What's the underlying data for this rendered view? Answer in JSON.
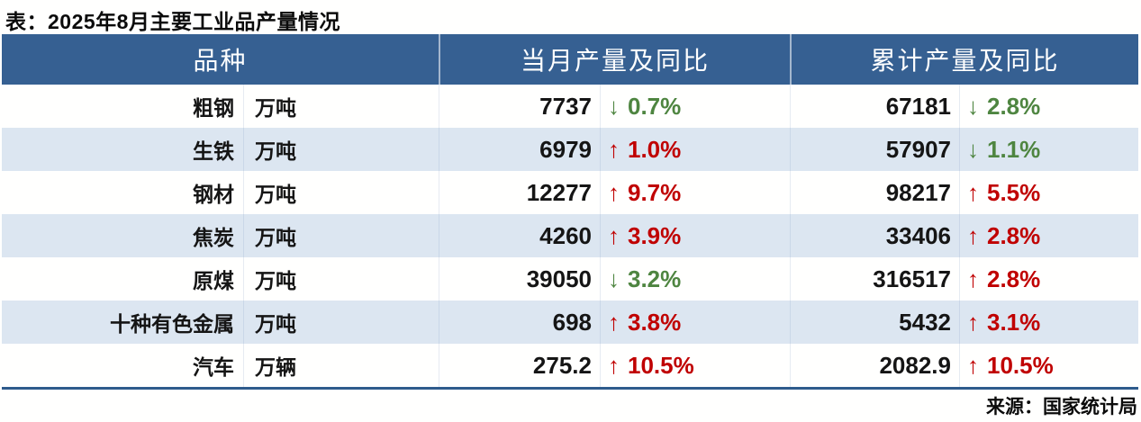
{
  "arrows": {
    "up": "↑",
    "down": "↓"
  },
  "colors": {
    "header_bg": "#366092",
    "alt_row": "#dce6f1",
    "up_red": "#c00000",
    "down_green": "#4e8540",
    "bottom_rule": "#2e5b8c"
  },
  "chart_data": {
    "type": "table",
    "title": "表：2025年8月主要工业品产量情况",
    "columns": [
      "品种",
      "当月产量及同比",
      "累计产量及同比"
    ],
    "rows": [
      {
        "name": "粗钢",
        "unit": "万吨",
        "month_value": "7737",
        "month_dir": "down",
        "month_pct": "0.7%",
        "cum_value": "67181",
        "cum_dir": "down",
        "cum_pct": "2.8%"
      },
      {
        "name": "生铁",
        "unit": "万吨",
        "month_value": "6979",
        "month_dir": "up",
        "month_pct": "1.0%",
        "cum_value": "57907",
        "cum_dir": "down",
        "cum_pct": "1.1%"
      },
      {
        "name": "钢材",
        "unit": "万吨",
        "month_value": "12277",
        "month_dir": "up",
        "month_pct": "9.7%",
        "cum_value": "98217",
        "cum_dir": "up",
        "cum_pct": "5.5%"
      },
      {
        "name": "焦炭",
        "unit": "万吨",
        "month_value": "4260",
        "month_dir": "up",
        "month_pct": "3.9%",
        "cum_value": "33406",
        "cum_dir": "up",
        "cum_pct": "2.8%"
      },
      {
        "name": "原煤",
        "unit": "万吨",
        "month_value": "39050",
        "month_dir": "down",
        "month_pct": "3.2%",
        "cum_value": "316517",
        "cum_dir": "up",
        "cum_pct": "2.8%"
      },
      {
        "name": "十种有色金属",
        "unit": "万吨",
        "month_value": "698",
        "month_dir": "up",
        "month_pct": "3.8%",
        "cum_value": "5432",
        "cum_dir": "up",
        "cum_pct": "3.1%"
      },
      {
        "name": "汽车",
        "unit": "万辆",
        "month_value": "275.2",
        "month_dir": "up",
        "month_pct": "10.5%",
        "cum_value": "2082.9",
        "cum_dir": "up",
        "cum_pct": "10.5%"
      }
    ],
    "source": "来源：国家统计局",
    "legend_note": {
      "up_arrow_color_meaning": "同比增长(红)",
      "down_arrow_color_meaning": "同比下降(绿)"
    }
  }
}
